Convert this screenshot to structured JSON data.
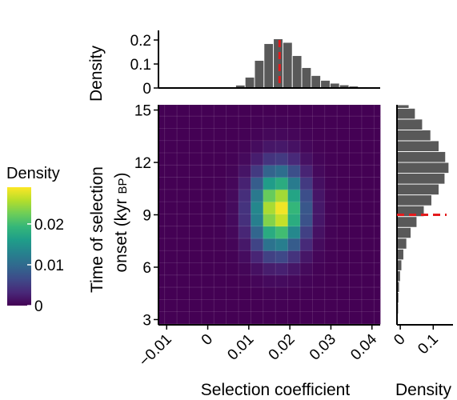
{
  "chart_data": {
    "type": "heatmap",
    "heatmap": {
      "xlabel": "Selection coefficient",
      "ylabel_line1": "Time of selection",
      "ylabel_line2_main": "onset (kyr ",
      "ylabel_line2_small": "BP",
      "ylabel_line2_end": ")",
      "xlim": [
        -0.012,
        0.042
      ],
      "ylim": [
        2.7,
        15.3
      ],
      "xticks": [
        -0.01,
        0,
        0.01,
        0.02,
        0.03,
        0.04
      ],
      "xtick_labels": [
        "−0.01",
        "0",
        "0.01",
        "0.02",
        "0.03",
        "0.04"
      ],
      "yticks": [
        3,
        6,
        9,
        12,
        15
      ],
      "ytick_labels": [
        "3",
        "6",
        "9",
        "12",
        "15"
      ],
      "x_bin_edges": [
        -0.0105,
        -0.0075,
        -0.0045,
        -0.0015,
        0.0015,
        0.0045,
        0.0075,
        0.0105,
        0.0135,
        0.0165,
        0.0195,
        0.0225,
        0.0255,
        0.0285,
        0.0315,
        0.0345,
        0.0375,
        0.0405,
        0.0435
      ],
      "y_bin_edges": [
        2.75,
        3.45,
        4.15,
        4.85,
        5.55,
        6.25,
        6.95,
        7.65,
        8.35,
        9.05,
        9.75,
        10.45,
        11.15,
        11.85,
        12.55,
        13.25,
        13.95,
        14.65,
        15.35
      ],
      "density_peak": {
        "s": 0.0172,
        "t": 9.3,
        "max": 0.029,
        "s_sd": 0.0042,
        "t_sd": 1.55
      },
      "colorscale": [
        "#440154",
        "#482878",
        "#3e4a89",
        "#31688e",
        "#26828e",
        "#1f9e89",
        "#35b779",
        "#6ece58",
        "#b5de2b",
        "#fde725"
      ]
    },
    "top_histogram": {
      "ylabel": "Density",
      "ylim": [
        0,
        0.24
      ],
      "yticks": [
        0,
        0.1,
        0.2
      ],
      "ytick_labels": [
        "0",
        "0.1",
        "0.2"
      ],
      "bin_start": 0.0045,
      "bin_width": 0.0023,
      "values": [
        0.003,
        0.012,
        0.045,
        0.115,
        0.185,
        0.205,
        0.19,
        0.135,
        0.085,
        0.052,
        0.032,
        0.02,
        0.013,
        0.008,
        0.005,
        0.003
      ],
      "dashed_line_x": 0.0175,
      "bar_color": "#595959",
      "line_color": "#e41a1c"
    },
    "right_histogram": {
      "xlabel": "Density",
      "xlim": [
        -0.01,
        0.16
      ],
      "xticks": [
        0,
        0.1
      ],
      "xtick_labels": [
        "0",
        "0.1"
      ],
      "bin_start": 2.7,
      "bin_width": 0.62,
      "values": [
        0.001,
        0.002,
        0.003,
        0.005,
        0.008,
        0.012,
        0.018,
        0.027,
        0.04,
        0.058,
        0.08,
        0.103,
        0.125,
        0.143,
        0.155,
        0.145,
        0.125,
        0.1,
        0.075,
        0.053,
        0.034,
        0.02,
        0.011,
        0.006,
        0.003,
        0.001
      ],
      "dashed_line_y": 9.0,
      "bar_color": "#595959",
      "line_color": "#e41a1c"
    },
    "legend": {
      "title": "Density",
      "ticks": [
        0,
        0.01,
        0.02
      ],
      "tick_labels": [
        "0",
        "0.01",
        "0.02"
      ],
      "max": 0.029
    }
  }
}
